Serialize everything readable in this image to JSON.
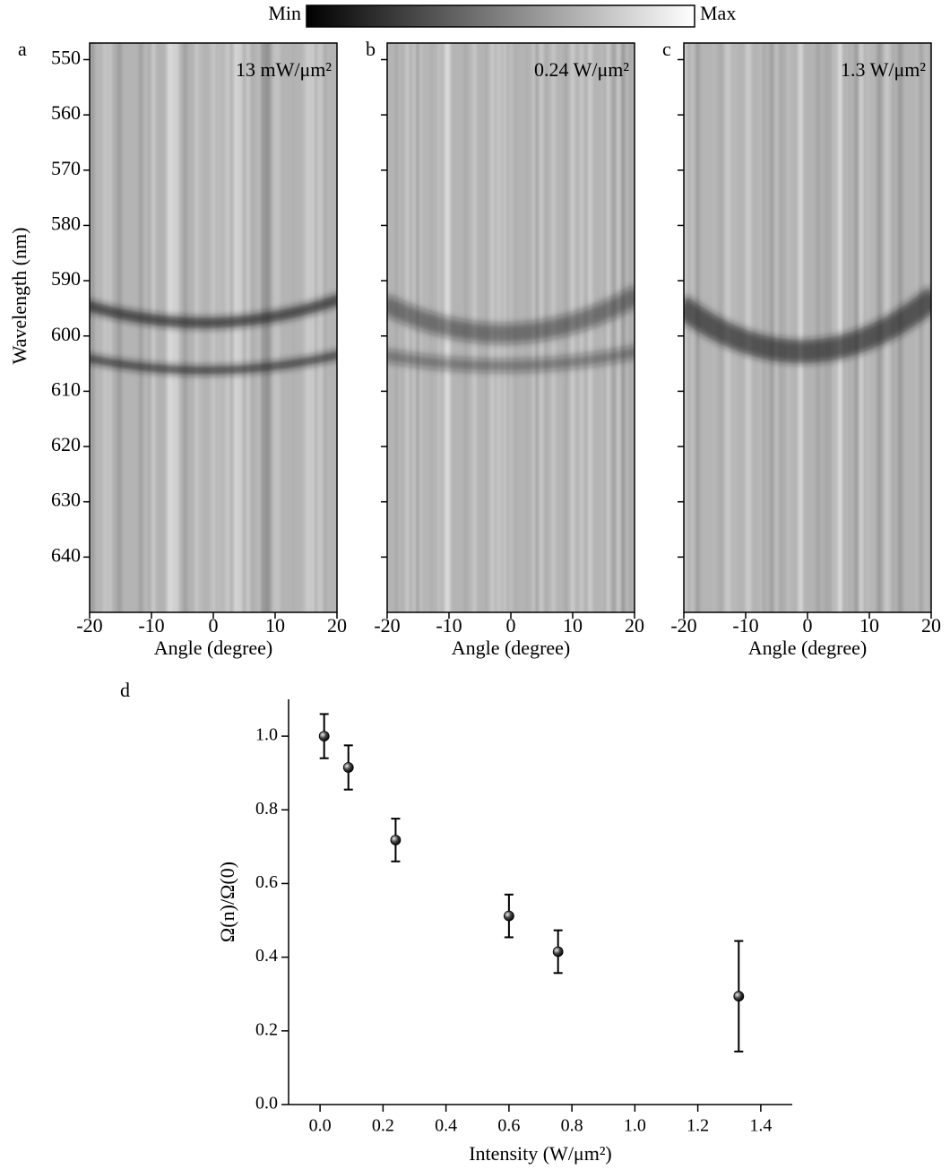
{
  "colorbar": {
    "min_label": "Min",
    "max_label": "Max"
  },
  "chart_data": [
    {
      "type": "heatmap",
      "panel_label": "a",
      "annotation": "13 mW/μm²",
      "xlabel": "Angle (degree)",
      "ylabel": "Wavelength (nm)",
      "xlim": [
        -20,
        20
      ],
      "xticks": [
        -20,
        -10,
        0,
        10,
        20
      ],
      "ylim": [
        547,
        650
      ],
      "y_inverted": true,
      "yticks": [
        550,
        560,
        570,
        580,
        590,
        600,
        610,
        620,
        630,
        640
      ],
      "ytick_labels": true
    },
    {
      "type": "heatmap",
      "panel_label": "b",
      "annotation": "0.24 W/μm²",
      "xlabel": "Angle (degree)",
      "xlim": [
        -20,
        20
      ],
      "xticks": [
        -20,
        -10,
        0,
        10,
        20
      ],
      "ylim": [
        547,
        650
      ],
      "y_inverted": true,
      "yticks": [
        550,
        560,
        570,
        580,
        590,
        600,
        610,
        620,
        630,
        640
      ],
      "ytick_labels": false
    },
    {
      "type": "heatmap",
      "panel_label": "c",
      "annotation": "1.3 W/μm²",
      "xlabel": "Angle (degree)",
      "xlim": [
        -20,
        20
      ],
      "xticks": [
        -20,
        -10,
        0,
        10,
        20
      ],
      "ylim": [
        547,
        650
      ],
      "y_inverted": true,
      "yticks": [
        550,
        560,
        570,
        580,
        590,
        600,
        610,
        620,
        630,
        640
      ],
      "ytick_labels": false
    },
    {
      "type": "errorbar",
      "panel_label": "d",
      "xlabel": "Intensity (W/μm²)",
      "ylabel": "Ω(n)/Ω(0)",
      "x": [
        0.013,
        0.09,
        0.24,
        0.6,
        0.756,
        1.33
      ],
      "values": [
        1.0,
        0.915,
        0.718,
        0.512,
        0.415,
        0.294
      ],
      "errors": [
        0.06,
        0.06,
        0.058,
        0.058,
        0.058,
        0.15
      ],
      "color": "#000000",
      "xlim": [
        -0.1,
        1.5
      ],
      "xticks": [
        {
          "value": 0,
          "label": "0.0"
        },
        0.2,
        0.4,
        0.6,
        0.8,
        {
          "value": 1,
          "label": "1.0"
        },
        1.2,
        1.4
      ],
      "ylim": [
        0,
        1.1
      ],
      "yticks": [
        {
          "value": 0,
          "label": "0.0"
        },
        0.2,
        0.4,
        0.6,
        0.8,
        {
          "value": 1,
          "label": "1.0"
        }
      ]
    }
  ]
}
